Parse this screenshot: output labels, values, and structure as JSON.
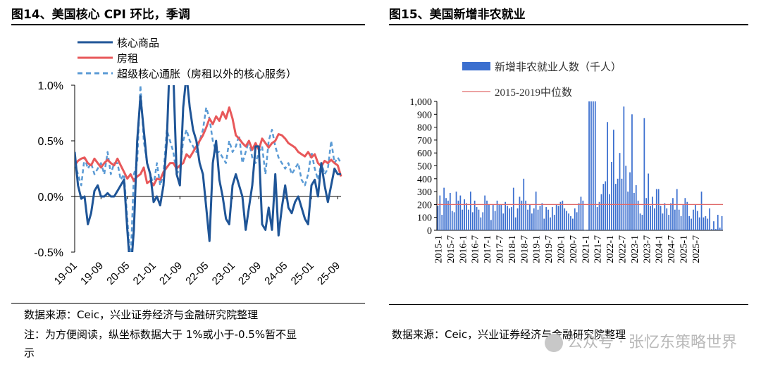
{
  "left_panel": {
    "title": "图14、美国核心 CPI 环比，季调",
    "source": "数据来源：Ceic，兴业证券经济与金融研究院整理",
    "note_line1": "注：为方便阅读，纵坐标数据大于 1%或小于-0.5%暂不显",
    "note_line2": "示"
  },
  "right_panel": {
    "title": "图15、美国新增非农就业",
    "source": "数据来源：Ceic，兴业证券经济与金融研究院整理"
  },
  "watermark": {
    "text": "公众号 · 张忆东策略世界"
  },
  "colors": {
    "core_goods": "#1f5597",
    "rent": "#e8585a",
    "supercore": "#5b9bd5",
    "bar": "#3b6fcf",
    "median_line": "#e06a6a"
  },
  "chart_data": [
    {
      "type": "line",
      "ylim": [
        -0.5,
        1.0
      ],
      "yticks": [
        1.0,
        0.5,
        0.0,
        -0.5
      ],
      "ytick_labels": [
        "1.0%",
        "0.5%",
        "0.0%",
        "-0.5%"
      ],
      "x_tick_labels": [
        "19-01",
        "19-09",
        "20-05",
        "21-01",
        "21-09",
        "22-05",
        "23-01",
        "23-09",
        "24-05",
        "25-01",
        "25-09"
      ],
      "x_tick_index": [
        0,
        8,
        16,
        24,
        32,
        40,
        48,
        56,
        64,
        72,
        80
      ],
      "legend_position": "top-left",
      "series": [
        {
          "name": "核心商品",
          "style": "solid",
          "values": [
            0.4,
            0.1,
            -0.02,
            0.0,
            -0.25,
            -0.15,
            0.05,
            0.1,
            0.0,
            0.0,
            0.03,
            0.0,
            0.0,
            0.05,
            0.1,
            0.15,
            -0.3,
            -0.7,
            -0.3,
            0.5,
            0.9,
            0.6,
            0.3,
            0.2,
            -0.05,
            0.0,
            -0.08,
            0.1,
            0.5,
            1.3,
            1.1,
            0.2,
            0.1,
            0.8,
            1.1,
            0.8,
            0.6,
            0.5,
            0.3,
            0.2,
            -0.1,
            -0.4,
            0.3,
            0.5,
            0.15,
            0.0,
            -0.2,
            -0.25,
            0.1,
            0.2,
            0.1,
            0.0,
            -0.3,
            -0.1,
            0.1,
            0.45,
            0.45,
            -0.25,
            -0.3,
            -0.1,
            -0.3,
            0.2,
            -0.35,
            -0.1,
            0.1,
            -0.1,
            -0.15,
            -0.05,
            0.0,
            -0.1,
            -0.2,
            -0.25,
            0.1,
            0.15,
            0.0,
            0.3,
            0.1,
            -0.05,
            0.1,
            0.25,
            0.2,
            0.2
          ]
        },
        {
          "name": "房租",
          "style": "solid",
          "values": [
            0.28,
            0.32,
            0.34,
            0.35,
            0.3,
            0.28,
            0.34,
            0.3,
            0.26,
            0.3,
            0.33,
            0.3,
            0.28,
            0.34,
            0.28,
            0.22,
            0.16,
            0.2,
            0.14,
            0.18,
            0.2,
            0.26,
            0.12,
            0.14,
            0.1,
            0.16,
            0.15,
            0.22,
            0.26,
            0.3,
            0.3,
            0.25,
            0.28,
            0.3,
            0.38,
            0.35,
            0.4,
            0.45,
            0.5,
            0.55,
            0.62,
            0.7,
            0.65,
            0.72,
            0.68,
            0.76,
            0.7,
            0.8,
            0.7,
            0.55,
            0.52,
            0.48,
            0.45,
            0.5,
            0.42,
            0.48,
            0.42,
            0.52,
            0.48,
            0.44,
            0.48,
            0.5,
            0.56,
            0.55,
            0.52,
            0.48,
            0.46,
            0.44,
            0.4,
            0.38,
            0.36,
            0.4,
            0.35,
            0.38,
            0.3,
            0.27,
            0.32,
            0.3,
            0.33,
            0.3,
            0.28,
            0.18
          ]
        },
        {
          "name": "超级核心通胀（房租以外的核心服务）",
          "style": "dashed",
          "values": [
            0.3,
            0.2,
            0.1,
            0.35,
            0.25,
            0.3,
            0.2,
            0.25,
            0.3,
            0.2,
            0.4,
            0.2,
            0.3,
            0.3,
            0.15,
            0.2,
            -0.2,
            -0.6,
            0.2,
            0.3,
            1.0,
            0.5,
            0.3,
            0.2,
            0.1,
            0.3,
            0.1,
            0.2,
            0.6,
            0.5,
            0.4,
            0.2,
            0.25,
            0.5,
            0.6,
            0.5,
            0.45,
            0.4,
            0.5,
            0.6,
            0.8,
            0.7,
            0.5,
            0.4,
            0.4,
            0.35,
            0.3,
            0.5,
            0.4,
            0.45,
            0.55,
            0.3,
            0.4,
            0.5,
            0.35,
            0.3,
            0.4,
            0.45,
            0.2,
            0.5,
            0.6,
            0.45,
            0.35,
            0.3,
            0.25,
            0.3,
            0.2,
            0.25,
            0.3,
            0.15,
            0.1,
            0.2,
            0.4,
            0.25,
            0.15,
            0.3,
            0.2,
            0.25,
            0.5,
            0.3,
            0.35,
            0.3
          ]
        }
      ]
    },
    {
      "type": "bar",
      "ylim": [
        0,
        1000
      ],
      "yticks": [
        0,
        100,
        200,
        300,
        400,
        500,
        600,
        700,
        800,
        900,
        1000
      ],
      "ytick_labels": [
        "0",
        "100",
        "200",
        "300",
        "400",
        "500",
        "600",
        "700",
        "800",
        "900",
        "1,000"
      ],
      "x_tick_labels": [
        "2015-1",
        "2015-7",
        "2016-1",
        "2016-7",
        "2017-1",
        "2017-7",
        "2018-1",
        "2018-7",
        "2019-1",
        "2019-7",
        "2020-1",
        "2020-7",
        "2021-1",
        "2021-7",
        "2022-1",
        "2022-7",
        "2023-1",
        "2023-7",
        "2024-1",
        "2024-7",
        "2025-1",
        "2025-7"
      ],
      "x_tick_index": [
        0,
        6,
        12,
        18,
        24,
        30,
        36,
        42,
        48,
        54,
        60,
        66,
        72,
        78,
        84,
        90,
        96,
        102,
        108,
        114,
        120,
        126
      ],
      "legend_position": "top-center",
      "series": [
        {
          "name": "新增非农就业人数（千人）",
          "values": [
            190,
            270,
            120,
            330,
            250,
            230,
            290,
            150,
            140,
            300,
            230,
            270,
            160,
            240,
            210,
            160,
            300,
            140,
            230,
            180,
            160,
            100,
            140,
            270,
            230,
            200,
            80,
            200,
            150,
            230,
            200,
            200,
            130,
            220,
            190,
            170,
            180,
            330,
            100,
            170,
            260,
            230,
            400,
            230,
            160,
            200,
            130,
            170,
            300,
            160,
            190,
            210,
            90,
            180,
            160,
            100,
            180,
            120,
            200,
            190,
            220,
            230,
            170,
            150,
            130,
            110,
            90,
            170,
            140,
            210,
            260,
            230,
            2,
            4,
            1000,
            1000,
            1000,
            1000,
            180,
            220,
            280,
            360,
            380,
            840,
            280,
            530,
            780,
            360,
            400,
            600,
            400,
            960,
            500,
            300,
            450,
            900,
            290,
            350,
            230,
            130,
            120,
            870,
            250,
            440,
            190,
            260,
            170,
            320,
            320,
            190,
            130,
            210,
            170,
            120,
            210,
            250,
            160,
            320,
            160,
            110,
            200,
            250,
            220,
            110,
            90,
            160,
            200,
            150,
            100,
            300,
            100,
            110,
            90,
            170,
            10,
            70,
            10,
            120,
            20,
            110
          ]
        },
        {
          "name": "2015-2019中位数",
          "values": [
            200
          ]
        }
      ]
    }
  ]
}
